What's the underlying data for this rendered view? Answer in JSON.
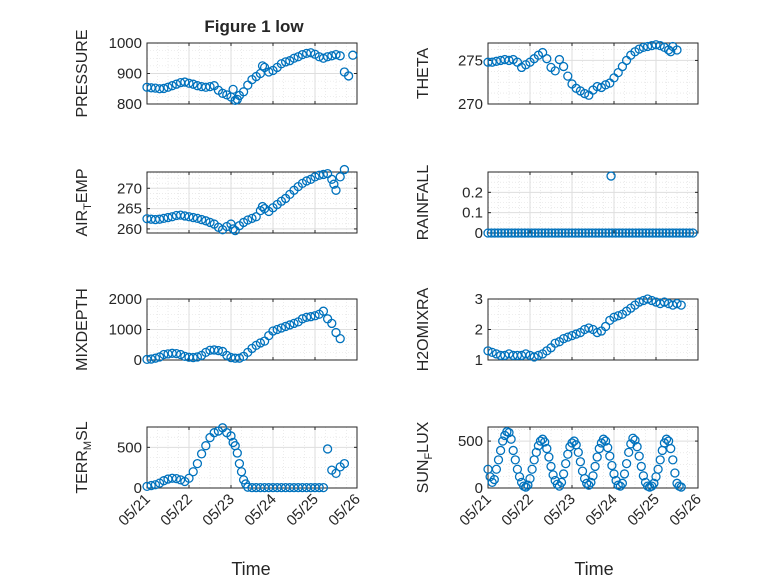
{
  "figure": {
    "title": "Figure 1 low",
    "x_tick_labels": [
      "05/21",
      "05/22",
      "05/23",
      "05/24",
      "05/25",
      "05/26"
    ],
    "xlabel": "Time",
    "colors": {
      "marker": "#0072BD",
      "axes": "#262626",
      "grid": "#DEDEDE",
      "background": "#FFFFFF"
    },
    "marker": "open-circle",
    "grid": true
  },
  "chart_data": [
    {
      "type": "scatter",
      "ylabel": "PRESSURE",
      "xlim": [
        0,
        5
      ],
      "ylim": [
        800,
        1000
      ],
      "yticks": [
        800,
        900,
        1000
      ],
      "ytick_labels": [
        "800",
        "900",
        "1000"
      ],
      "x": [
        0,
        0.1,
        0.2,
        0.3,
        0.4,
        0.5,
        0.6,
        0.7,
        0.8,
        0.9,
        1.0,
        1.1,
        1.2,
        1.3,
        1.4,
        1.5,
        1.6,
        1.7,
        1.8,
        1.9,
        2.0,
        2.05,
        2.1,
        2.15,
        2.2,
        2.3,
        2.4,
        2.5,
        2.6,
        2.7,
        2.75,
        2.8,
        2.9,
        3.0,
        3.1,
        3.2,
        3.3,
        3.4,
        3.5,
        3.6,
        3.7,
        3.8,
        3.9,
        4.0,
        4.1,
        4.2,
        4.3,
        4.4,
        4.5,
        4.6,
        4.7,
        4.8,
        4.9
      ],
      "y": [
        855,
        853,
        852,
        850,
        851,
        855,
        860,
        865,
        870,
        872,
        868,
        865,
        860,
        857,
        855,
        857,
        860,
        845,
        835,
        830,
        823,
        848,
        812,
        815,
        828,
        840,
        862,
        880,
        890,
        900,
        925,
        920,
        905,
        910,
        920,
        932,
        938,
        942,
        950,
        955,
        962,
        966,
        968,
        963,
        955,
        950,
        955,
        958,
        962,
        958,
        905,
        892,
        960
      ]
    },
    {
      "type": "scatter",
      "ylabel": "THETA",
      "xlim": [
        0,
        5
      ],
      "ylim": [
        270,
        277
      ],
      "yticks": [
        270,
        275
      ],
      "ytick_labels": [
        "270",
        "275"
      ],
      "x": [
        0,
        0.1,
        0.2,
        0.3,
        0.4,
        0.5,
        0.6,
        0.7,
        0.8,
        0.9,
        1.0,
        1.1,
        1.2,
        1.3,
        1.4,
        1.5,
        1.6,
        1.7,
        1.8,
        1.9,
        2.0,
        2.1,
        2.2,
        2.3,
        2.4,
        2.5,
        2.6,
        2.7,
        2.8,
        2.9,
        3.0,
        3.1,
        3.2,
        3.3,
        3.4,
        3.5,
        3.6,
        3.7,
        3.8,
        3.9,
        4.0,
        4.1,
        4.2,
        4.3,
        4.35,
        4.4,
        4.5
      ],
      "y": [
        274.8,
        274.8,
        274.9,
        275.0,
        275.1,
        275.0,
        275.1,
        274.8,
        274.2,
        274.5,
        274.8,
        275.2,
        275.6,
        275.9,
        275.2,
        274.2,
        273.8,
        275.1,
        274.3,
        273.2,
        272.3,
        271.8,
        271.5,
        271.2,
        271.0,
        271.6,
        272.0,
        271.9,
        272.2,
        272.4,
        273.0,
        273.6,
        274.3,
        275.0,
        275.6,
        276.0,
        276.3,
        276.5,
        276.6,
        276.7,
        276.8,
        276.7,
        276.5,
        276.2,
        276.0,
        276.6,
        276.2
      ]
    },
    {
      "type": "scatter",
      "ylabel": "AIR_TEMP",
      "xlim": [
        0,
        5
      ],
      "ylim": [
        259,
        274
      ],
      "yticks": [
        260,
        265,
        270
      ],
      "ytick_labels": [
        "260",
        "265",
        "270"
      ],
      "x": [
        0,
        0.1,
        0.2,
        0.3,
        0.4,
        0.5,
        0.6,
        0.7,
        0.8,
        0.9,
        1.0,
        1.1,
        1.2,
        1.3,
        1.4,
        1.5,
        1.6,
        1.7,
        1.8,
        1.9,
        2.0,
        2.05,
        2.1,
        2.2,
        2.3,
        2.4,
        2.5,
        2.6,
        2.7,
        2.75,
        2.8,
        2.9,
        3.0,
        3.1,
        3.2,
        3.3,
        3.4,
        3.5,
        3.6,
        3.7,
        3.8,
        3.9,
        4.0,
        4.1,
        4.2,
        4.3,
        4.4,
        4.45,
        4.5,
        4.6,
        4.7
      ],
      "y": [
        262.5,
        262.4,
        262.3,
        262.4,
        262.6,
        262.8,
        263.0,
        263.3,
        263.4,
        263.2,
        263.0,
        262.8,
        262.6,
        262.3,
        262.0,
        261.6,
        261.2,
        260.4,
        259.8,
        260.6,
        261.2,
        260.0,
        259.6,
        260.8,
        261.6,
        262.2,
        262.6,
        263.0,
        264.5,
        265.5,
        265.0,
        264.3,
        265.2,
        266.0,
        266.8,
        267.5,
        268.5,
        269.5,
        270.4,
        271.2,
        271.8,
        272.2,
        272.8,
        273.2,
        273.4,
        273.6,
        272.2,
        271.0,
        269.5,
        272.8,
        274.6
      ]
    },
    {
      "type": "scatter",
      "ylabel": "RAINFALL",
      "xlim": [
        0,
        5
      ],
      "ylim": [
        0,
        0.3
      ],
      "yticks": [
        0,
        0.1,
        0.2
      ],
      "ytick_labels": [
        "0",
        "0.1",
        "0.2"
      ],
      "x": [
        0,
        0.08,
        0.16,
        0.24,
        0.32,
        0.4,
        0.48,
        0.56,
        0.64,
        0.72,
        0.8,
        0.88,
        0.96,
        1.04,
        1.12,
        1.2,
        1.28,
        1.36,
        1.44,
        1.52,
        1.6,
        1.68,
        1.76,
        1.84,
        1.92,
        2.0,
        2.08,
        2.16,
        2.24,
        2.32,
        2.4,
        2.48,
        2.56,
        2.64,
        2.72,
        2.8,
        2.88,
        2.96,
        3.04,
        3.12,
        3.2,
        3.28,
        3.36,
        3.44,
        3.52,
        3.6,
        3.68,
        3.76,
        3.84,
        3.92,
        4.0,
        4.08,
        4.16,
        4.24,
        4.32,
        4.4,
        4.48,
        4.56,
        4.64,
        4.72,
        4.8,
        4.88,
        2.93
      ],
      "y": [
        0,
        0,
        0,
        0,
        0,
        0,
        0,
        0,
        0,
        0,
        0,
        0,
        0,
        0,
        0,
        0,
        0,
        0,
        0,
        0,
        0,
        0,
        0,
        0,
        0,
        0,
        0,
        0,
        0,
        0,
        0,
        0,
        0,
        0,
        0,
        0,
        0,
        0,
        0,
        0,
        0,
        0,
        0,
        0,
        0,
        0,
        0,
        0,
        0,
        0,
        0,
        0,
        0,
        0,
        0,
        0,
        0,
        0,
        0,
        0,
        0,
        0,
        0.28
      ]
    },
    {
      "type": "scatter",
      "ylabel": "MIXDEPTH",
      "xlim": [
        0,
        5
      ],
      "ylim": [
        0,
        2000
      ],
      "yticks": [
        0,
        1000,
        2000
      ],
      "ytick_labels": [
        "0",
        "1000",
        "2000"
      ],
      "x": [
        0,
        0.1,
        0.2,
        0.3,
        0.4,
        0.5,
        0.6,
        0.7,
        0.8,
        0.9,
        1.0,
        1.1,
        1.2,
        1.3,
        1.4,
        1.5,
        1.6,
        1.7,
        1.8,
        1.9,
        2.0,
        2.1,
        2.2,
        2.3,
        2.4,
        2.5,
        2.6,
        2.7,
        2.8,
        2.9,
        3.0,
        3.1,
        3.2,
        3.3,
        3.4,
        3.5,
        3.6,
        3.7,
        3.8,
        3.9,
        4.0,
        4.1,
        4.2,
        4.3,
        4.4,
        4.5,
        4.6
      ],
      "y": [
        20,
        30,
        60,
        100,
        180,
        200,
        220,
        210,
        180,
        120,
        90,
        80,
        100,
        150,
        250,
        320,
        330,
        310,
        280,
        150,
        80,
        60,
        60,
        120,
        250,
        380,
        480,
        560,
        620,
        800,
        950,
        1000,
        1050,
        1100,
        1150,
        1200,
        1250,
        1350,
        1400,
        1420,
        1450,
        1500,
        1600,
        1350,
        1200,
        900,
        700
      ]
    },
    {
      "type": "scatter",
      "ylabel": "H2OMIXRA",
      "xlim": [
        0,
        5
      ],
      "ylim": [
        1,
        3
      ],
      "yticks": [
        1,
        2,
        3
      ],
      "ytick_labels": [
        "1",
        "2",
        "3"
      ],
      "x": [
        0,
        0.1,
        0.2,
        0.3,
        0.4,
        0.5,
        0.6,
        0.7,
        0.8,
        0.9,
        1.0,
        1.1,
        1.2,
        1.3,
        1.4,
        1.5,
        1.6,
        1.7,
        1.8,
        1.9,
        2.0,
        2.1,
        2.2,
        2.3,
        2.4,
        2.5,
        2.6,
        2.7,
        2.8,
        2.9,
        3.0,
        3.1,
        3.2,
        3.3,
        3.4,
        3.5,
        3.6,
        3.7,
        3.8,
        3.9,
        4.0,
        4.1,
        4.2,
        4.3,
        4.4,
        4.5,
        4.6
      ],
      "y": [
        1.3,
        1.25,
        1.2,
        1.15,
        1.15,
        1.2,
        1.15,
        1.15,
        1.15,
        1.2,
        1.15,
        1.1,
        1.15,
        1.2,
        1.3,
        1.4,
        1.55,
        1.6,
        1.7,
        1.75,
        1.8,
        1.85,
        1.9,
        2.0,
        2.05,
        2.0,
        1.9,
        1.95,
        2.1,
        2.3,
        2.4,
        2.45,
        2.5,
        2.6,
        2.7,
        2.8,
        2.9,
        2.95,
        3.0,
        2.95,
        2.9,
        2.85,
        2.9,
        2.85,
        2.8,
        2.85,
        2.8
      ]
    },
    {
      "type": "scatter",
      "ylabel": "TERR_MSL",
      "xlim": [
        0,
        5
      ],
      "ylim": [
        0,
        750
      ],
      "yticks": [
        0,
        500
      ],
      "ytick_labels": [
        "0",
        "500"
      ],
      "x": [
        0,
        0.1,
        0.2,
        0.3,
        0.4,
        0.5,
        0.6,
        0.7,
        0.8,
        0.9,
        1.0,
        1.1,
        1.2,
        1.3,
        1.4,
        1.5,
        1.6,
        1.7,
        1.8,
        1.9,
        2.0,
        2.05,
        2.1,
        2.15,
        2.2,
        2.25,
        2.3,
        2.35,
        2.4,
        2.5,
        2.6,
        2.7,
        2.8,
        2.9,
        3.0,
        3.1,
        3.2,
        3.3,
        3.4,
        3.5,
        3.6,
        3.7,
        3.8,
        3.9,
        4.0,
        4.1,
        4.2,
        4.3,
        4.4,
        4.5,
        4.6,
        4.7
      ],
      "y": [
        20,
        30,
        40,
        60,
        90,
        110,
        120,
        115,
        100,
        80,
        120,
        200,
        300,
        420,
        520,
        620,
        680,
        700,
        740,
        680,
        640,
        560,
        520,
        430,
        300,
        200,
        100,
        50,
        10,
        5,
        5,
        5,
        5,
        5,
        5,
        5,
        5,
        5,
        5,
        5,
        5,
        5,
        5,
        5,
        5,
        5,
        5,
        480,
        220,
        180,
        260,
        300
      ]
    },
    {
      "type": "scatter",
      "ylabel": "SUN_FLUX",
      "xlim": [
        0,
        5
      ],
      "ylim": [
        0,
        650
      ],
      "yticks": [
        0,
        500
      ],
      "ytick_labels": [
        "0",
        "500"
      ],
      "x": [
        0,
        0.05,
        0.1,
        0.15,
        0.2,
        0.25,
        0.3,
        0.35,
        0.4,
        0.45,
        0.5,
        0.55,
        0.6,
        0.65,
        0.7,
        0.75,
        0.8,
        0.85,
        0.9,
        0.95,
        1.0,
        1.05,
        1.1,
        1.15,
        1.2,
        1.25,
        1.3,
        1.35,
        1.4,
        1.45,
        1.5,
        1.55,
        1.6,
        1.65,
        1.7,
        1.75,
        1.8,
        1.85,
        1.9,
        1.95,
        2.0,
        2.05,
        2.1,
        2.15,
        2.2,
        2.25,
        2.3,
        2.35,
        2.4,
        2.45,
        2.5,
        2.55,
        2.6,
        2.65,
        2.7,
        2.75,
        2.8,
        2.85,
        2.9,
        2.95,
        3.0,
        3.05,
        3.1,
        3.15,
        3.2,
        3.25,
        3.3,
        3.35,
        3.4,
        3.45,
        3.5,
        3.55,
        3.6,
        3.65,
        3.7,
        3.75,
        3.8,
        3.85,
        3.9,
        3.95,
        4.0,
        4.05,
        4.1,
        4.15,
        4.2,
        4.25,
        4.3,
        4.35,
        4.4,
        4.45,
        4.5,
        4.55,
        4.6
      ],
      "y": [
        200,
        120,
        60,
        90,
        200,
        300,
        400,
        500,
        560,
        600,
        590,
        520,
        400,
        300,
        200,
        120,
        60,
        20,
        10,
        30,
        100,
        200,
        300,
        380,
        450,
        500,
        520,
        490,
        420,
        330,
        230,
        140,
        80,
        40,
        20,
        60,
        150,
        260,
        360,
        440,
        480,
        500,
        460,
        380,
        280,
        180,
        100,
        50,
        30,
        60,
        130,
        230,
        330,
        420,
        480,
        520,
        500,
        430,
        340,
        240,
        150,
        80,
        30,
        20,
        50,
        150,
        260,
        380,
        470,
        530,
        510,
        440,
        340,
        230,
        130,
        60,
        20,
        10,
        20,
        50,
        120,
        200,
        300,
        400,
        480,
        520,
        500,
        420,
        300,
        160,
        50,
        20,
        10
      ]
    }
  ]
}
